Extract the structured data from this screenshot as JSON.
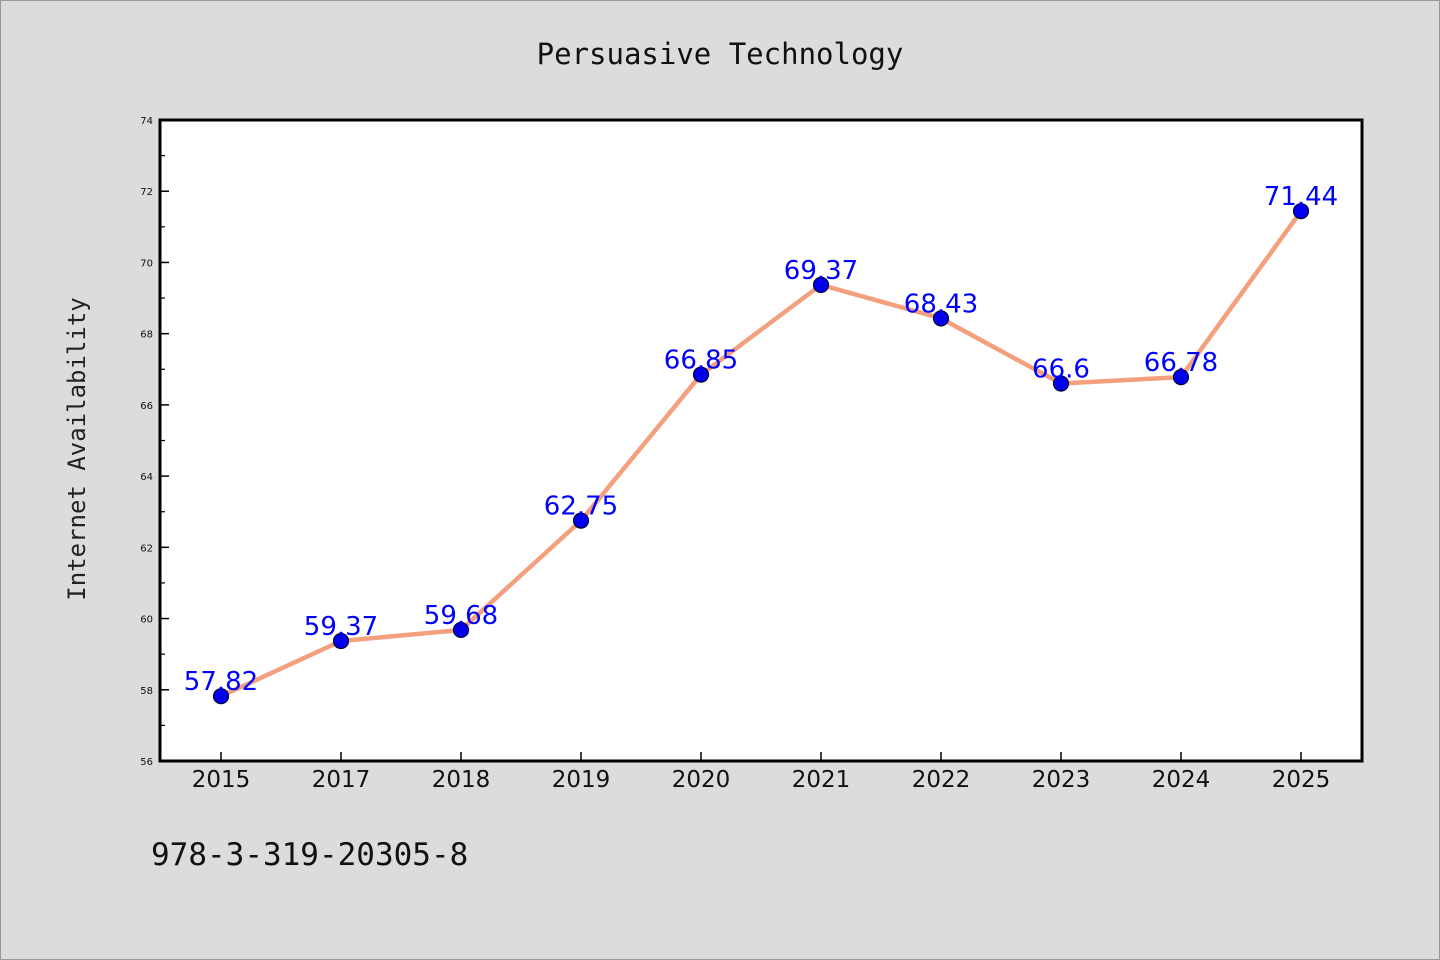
{
  "chart_data": {
    "type": "line",
    "title": "Persuasive Technology",
    "xlabel": "",
    "ylabel": "Internet Availability",
    "categories": [
      "2015",
      "2017",
      "2018",
      "2019",
      "2020",
      "2021",
      "2022",
      "2023",
      "2024",
      "2025"
    ],
    "series": [
      {
        "values": [
          57.82,
          59.37,
          59.68,
          62.75,
          66.85,
          69.37,
          68.43,
          66.6,
          66.78,
          71.44
        ],
        "labels": [
          "57.82",
          "59.37",
          "59.68",
          "62.75",
          "66.85",
          "69.37",
          "68.43",
          "66.6",
          "66.78",
          "71.44"
        ]
      }
    ],
    "ylim": [
      56,
      74
    ],
    "yticks": [
      56,
      58,
      60,
      62,
      64,
      66,
      68,
      70,
      72,
      74
    ],
    "grid": false,
    "legend": "none"
  },
  "caption": "978-3-319-20305-8",
  "colors": {
    "background": "#dcdcdc",
    "plot_area": "#ffffff",
    "line": "#f4a07e",
    "marker": "#0000ee",
    "data_label": "#0000ff"
  }
}
